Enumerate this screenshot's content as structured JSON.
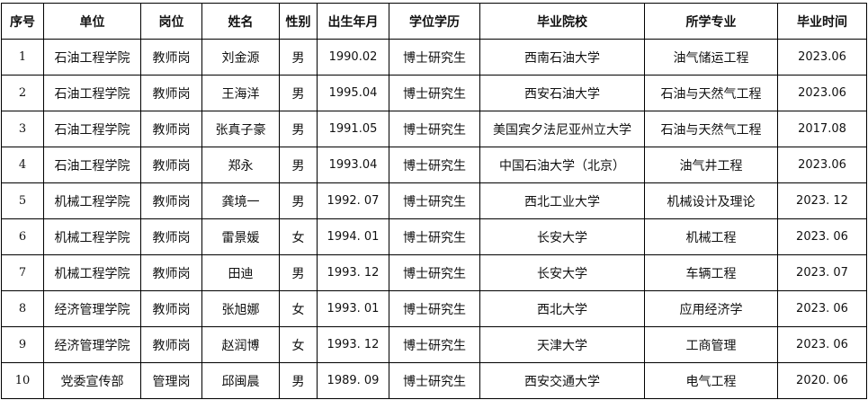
{
  "table": {
    "headers": [
      "序号",
      "单位",
      "岗位",
      "姓名",
      "性别",
      "出生年月",
      "学位学历",
      "毕业院校",
      "所学专业",
      "毕业时间"
    ],
    "rows": [
      [
        "1",
        "石油工程学院",
        "教师岗",
        "刘金源",
        "男",
        "1990.02",
        "博士研究生",
        "西南石油大学",
        "油气储运工程",
        "2023.06"
      ],
      [
        "2",
        "石油工程学院",
        "教师岗",
        "王海洋",
        "男",
        "1995.04",
        "博士研究生",
        "西安石油大学",
        "石油与天然气工程",
        "2023.06"
      ],
      [
        "3",
        "石油工程学院",
        "教师岗",
        "张真子豪",
        "男",
        "1991.05",
        "博士研究生",
        "美国宾夕法尼亚州立大学",
        "石油与天然气工程",
        "2017.08"
      ],
      [
        "4",
        "石油工程学院",
        "教师岗",
        "郑永",
        "男",
        "1993.04",
        "博士研究生",
        "中国石油大学（北京）",
        "油气井工程",
        "2023.06"
      ],
      [
        "5",
        "机械工程学院",
        "教师岗",
        "龚境一",
        "男",
        "1992. 07",
        "博士研究生",
        "西北工业大学",
        "机械设计及理论",
        "2023. 12"
      ],
      [
        "6",
        "机械工程学院",
        "教师岗",
        "雷景媛",
        "女",
        "1994. 01",
        "博士研究生",
        "长安大学",
        "机械工程",
        "2023. 06"
      ],
      [
        "7",
        "机械工程学院",
        "教师岗",
        "田迪",
        "男",
        "1993. 12",
        "博士研究生",
        "长安大学",
        "车辆工程",
        "2023. 07"
      ],
      [
        "8",
        "经济管理学院",
        "教师岗",
        "张旭娜",
        "女",
        "1993. 01",
        "博士研究生",
        "西北大学",
        "应用经济学",
        "2023. 06"
      ],
      [
        "9",
        "经济管理学院",
        "教师岗",
        "赵润博",
        "女",
        "1993. 12",
        "博士研究生",
        "天津大学",
        "工商管理",
        "2023. 06"
      ],
      [
        "10",
        "党委宣传部",
        "管理岗",
        "邱闽晨",
        "男",
        "1989. 09",
        "博士研究生",
        "西安交通大学",
        "电气工程",
        "2020. 06"
      ]
    ]
  }
}
